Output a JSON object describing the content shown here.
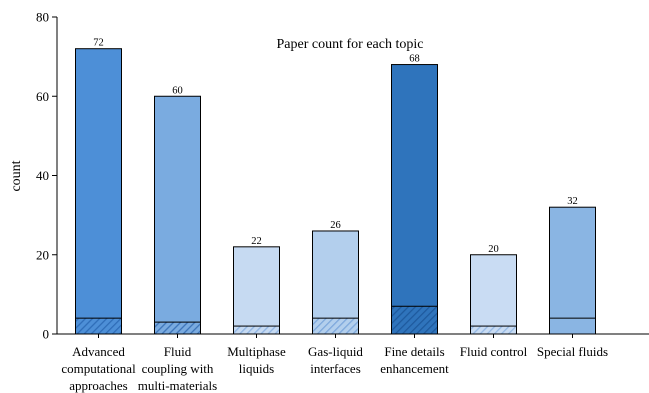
{
  "chart_data": {
    "type": "bar",
    "title": "Paper count for each topic",
    "xlabel": "",
    "ylabel": "count",
    "ylim": [
      0,
      80
    ],
    "yticks": [
      0,
      20,
      40,
      60,
      80
    ],
    "grid": false,
    "categories": [
      [
        "Advanced",
        "computational",
        "approaches"
      ],
      [
        "Fluid",
        "coupling with",
        "multi-materials"
      ],
      [
        "Multiphase",
        "liquids"
      ],
      [
        "Gas-liquid",
        "interfaces"
      ],
      [
        "Fine details",
        "enhancement"
      ],
      [
        "Fluid control"
      ],
      [
        "Special fluids"
      ]
    ],
    "values": [
      72,
      60,
      22,
      26,
      68,
      20,
      32
    ],
    "value_labels": [
      "72",
      "60",
      "22",
      "26",
      "68",
      "20",
      "32"
    ],
    "bottom_segment_values": [
      4,
      3,
      2,
      4,
      7,
      2,
      4
    ],
    "bottom_segment_hatched": [
      true,
      true,
      true,
      true,
      true,
      true,
      false
    ],
    "colors": [
      "#4d8fd7",
      "#7aabe0",
      "#c6daf2",
      "#b3cfed",
      "#2f74bc",
      "#c9dcf3",
      "#8ab5e3"
    ],
    "hatch_colors": [
      "#2f6db8",
      "#3d74b8",
      "#8fb4e2",
      "#7ea8dc",
      "#1e5a9e",
      "#95b9e4",
      "#8ab5e3"
    ]
  }
}
